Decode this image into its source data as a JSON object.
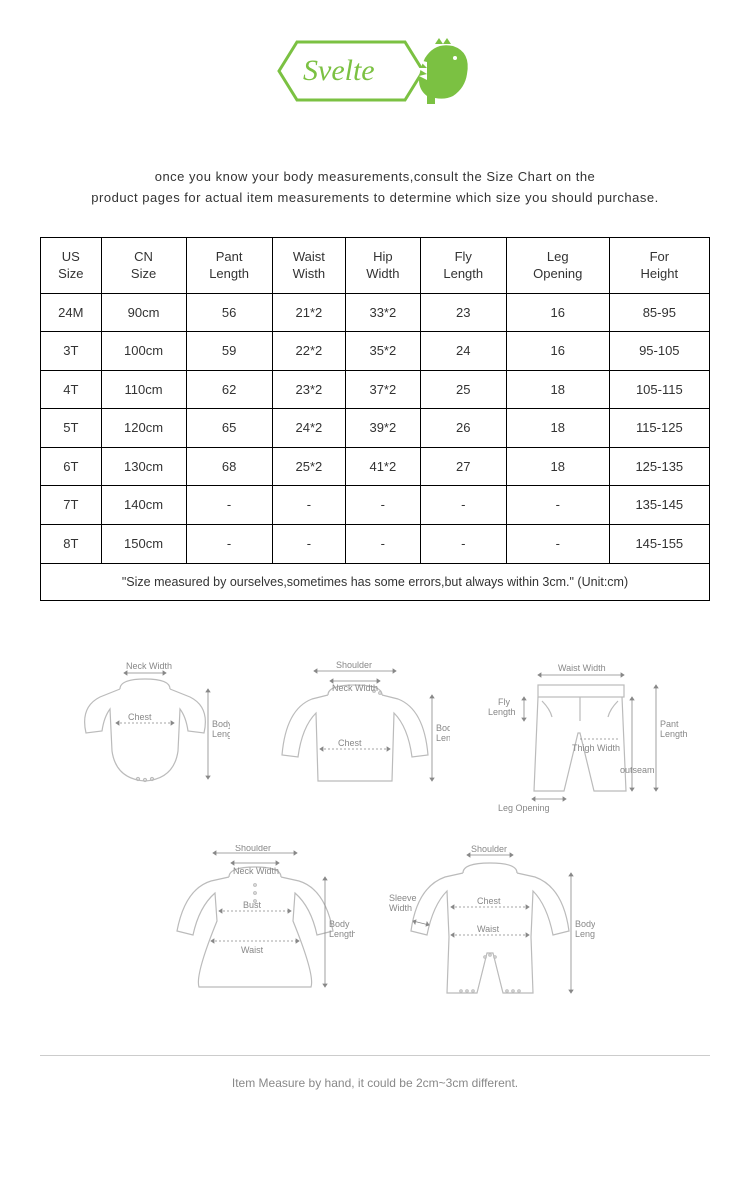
{
  "logo": {
    "text": "Svelte",
    "accent_color": "#7bc142",
    "border_color": "#7bc142"
  },
  "intro_line1": "once you know your body measurements,consult the Size Chart on the",
  "intro_line2": "product pages for actual item measurements to determine which size you should purchase.",
  "table": {
    "columns": [
      "US\nSize",
      "CN\nSize",
      "Pant\nLength",
      "Waist\nWisth",
      "Hip\nWidth",
      "Fly\nLength",
      "Leg\nOpening",
      "For\nHeight"
    ],
    "rows": [
      [
        "24M",
        "90cm",
        "56",
        "21*2",
        "33*2",
        "23",
        "16",
        "85-95"
      ],
      [
        "3T",
        "100cm",
        "59",
        "22*2",
        "35*2",
        "24",
        "16",
        "95-105"
      ],
      [
        "4T",
        "110cm",
        "62",
        "23*2",
        "37*2",
        "25",
        "18",
        "105-115"
      ],
      [
        "5T",
        "120cm",
        "65",
        "24*2",
        "39*2",
        "26",
        "18",
        "115-125"
      ],
      [
        "6T",
        "130cm",
        "68",
        "25*2",
        "41*2",
        "27",
        "18",
        "125-135"
      ],
      [
        "7T",
        "140cm",
        "-",
        "-",
        "-",
        "-",
        "-",
        "135-145"
      ],
      [
        "8T",
        "150cm",
        "-",
        "-",
        "-",
        "-",
        "-",
        "145-155"
      ]
    ],
    "footnote": "\"Size measured by ourselves,sometimes has some errors,but always within 3cm.\"  (Unit:cm)"
  },
  "diagrams": {
    "d1": {
      "neck": "Neck Width",
      "chest": "Chest",
      "body": "Body\nLength"
    },
    "d2": {
      "shoulder": "Shoulder",
      "neck": "Neck Width",
      "chest": "Chest",
      "body": "Body\nLength"
    },
    "d3": {
      "waist": "Waist Width",
      "fly": "Fly\nLength",
      "thigh": "Thigh Width",
      "leg": "Leg Opening",
      "pant": "Pant\nLength",
      "out": "outseam"
    },
    "d4": {
      "shoulder": "Shoulder",
      "neck": "Neck Width",
      "bust": "Bust",
      "waist": "Waist",
      "body": "Body\nLength"
    },
    "d5": {
      "shoulder": "Shoulder",
      "sleeve": "Sleeve\nWidth",
      "chest": "Chest",
      "waist": "Waist",
      "body": "Body\nLength"
    }
  },
  "bottom_note": "Item Measure by hand, it could be 2cm~3cm different.",
  "colors": {
    "text": "#333333",
    "border": "#000000",
    "diagram_stroke": "#bbbbbb",
    "diagram_label": "#888888",
    "background": "#ffffff"
  }
}
